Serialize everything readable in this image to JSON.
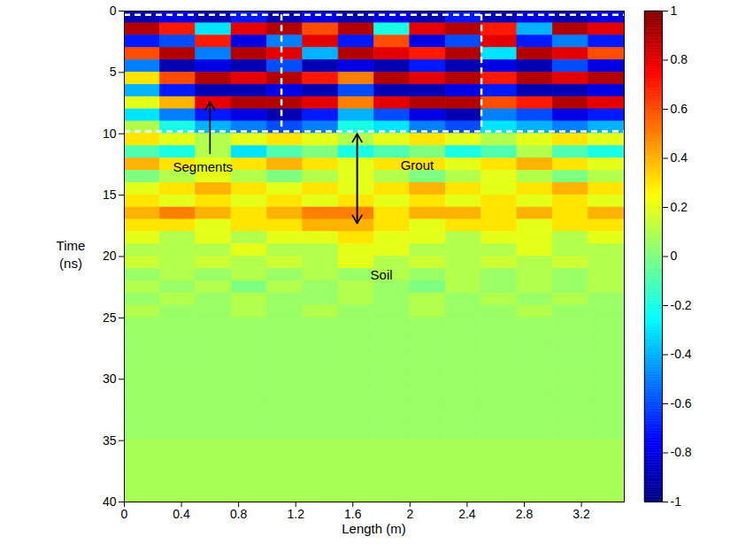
{
  "chart_data": {
    "type": "heatmap",
    "x_label": "Length (m)",
    "y_label": "Time (ns)",
    "xlim": [
      0,
      3.5
    ],
    "xticks": [
      0,
      0.4,
      0.8,
      1.2,
      1.6,
      2.0,
      2.4,
      2.8,
      3.2
    ],
    "ylim": [
      0,
      40
    ],
    "yticks": [
      0,
      5,
      10,
      15,
      20,
      25,
      30,
      35,
      40
    ],
    "color": "jet",
    "cells": {
      "x_edges": [
        0,
        0.25,
        0.5,
        0.75,
        1.0,
        1.25,
        1.5,
        1.75,
        2.0,
        2.25,
        2.5,
        2.75,
        3.0,
        3.25,
        3.5
      ],
      "time_edges": [
        0,
        1,
        2,
        3,
        4,
        5,
        6,
        7,
        8,
        9,
        10,
        11,
        12,
        13,
        14,
        15,
        16,
        17,
        18,
        19,
        20,
        21,
        22,
        23,
        24,
        25,
        26,
        27,
        28,
        29,
        30,
        31,
        32,
        33,
        34,
        35,
        36,
        37,
        38,
        39,
        40
      ],
      "values": [
        [
          -0.9,
          -0.8,
          -0.9,
          -0.7,
          -0.9,
          -0.8,
          -0.9,
          -0.8,
          -0.9,
          -0.7,
          -0.9,
          -0.8,
          -0.9,
          -0.8
        ],
        [
          0.9,
          0.7,
          -0.3,
          0.8,
          0.9,
          0.6,
          0.9,
          -0.2,
          0.8,
          0.9,
          0.7,
          -0.4,
          0.9,
          0.8
        ],
        [
          -0.7,
          -0.6,
          0.7,
          -0.8,
          -0.5,
          0.8,
          -0.7,
          0.6,
          -0.8,
          -0.6,
          0.8,
          -0.7,
          -0.5,
          -0.7
        ],
        [
          0.6,
          0.9,
          -0.5,
          0.9,
          0.8,
          -0.4,
          0.9,
          0.8,
          0.7,
          0.9,
          -0.3,
          0.9,
          0.8,
          0.6
        ],
        [
          -0.5,
          -0.9,
          -0.8,
          -0.9,
          -0.6,
          -0.9,
          -0.8,
          -0.9,
          -0.7,
          -0.9,
          -0.8,
          -0.9,
          -0.6,
          -0.8
        ],
        [
          0.3,
          0.6,
          0.9,
          0.8,
          0.9,
          0.7,
          0.5,
          0.9,
          0.8,
          0.9,
          0.7,
          0.9,
          0.8,
          0.9
        ],
        [
          -0.4,
          -0.7,
          -0.9,
          -0.9,
          -0.8,
          -0.9,
          -0.6,
          -0.9,
          -0.9,
          -0.8,
          -0.7,
          -0.9,
          -0.9,
          -0.8
        ],
        [
          0.2,
          0.4,
          0.8,
          0.9,
          0.9,
          0.8,
          0.5,
          0.8,
          0.9,
          0.9,
          0.6,
          0.7,
          0.9,
          0.8
        ],
        [
          -0.3,
          -0.5,
          -0.7,
          -0.8,
          -0.9,
          -0.7,
          -0.4,
          -0.6,
          -0.8,
          -0.9,
          -0.5,
          -0.6,
          -0.8,
          -0.7
        ],
        [
          0.1,
          -0.2,
          -0.4,
          -0.5,
          -0.6,
          -0.5,
          -0.2,
          -0.3,
          -0.5,
          -0.6,
          -0.3,
          -0.4,
          -0.5,
          -0.4
        ],
        [
          0.3,
          0.2,
          0.1,
          0.2,
          0.3,
          0.2,
          0.1,
          0.2,
          0.3,
          0.2,
          0.1,
          0.2,
          0.3,
          0.2
        ],
        [
          -0.1,
          -0.2,
          0.1,
          -0.3,
          -0.1,
          0.0,
          -0.2,
          -0.1,
          0.0,
          -0.2,
          -0.1,
          0.1,
          -0.1,
          -0.2
        ],
        [
          0.4,
          0.3,
          0.2,
          0.3,
          0.4,
          0.3,
          0.2,
          0.3,
          0.3,
          0.2,
          0.3,
          0.4,
          0.3,
          0.2
        ],
        [
          0.0,
          0.1,
          0.2,
          0.1,
          0.0,
          0.1,
          0.2,
          0.1,
          0.0,
          0.1,
          0.2,
          0.1,
          0.0,
          0.1
        ],
        [
          0.2,
          0.3,
          0.4,
          0.3,
          0.2,
          0.3,
          0.2,
          0.3,
          0.4,
          0.3,
          0.2,
          0.3,
          0.4,
          0.3
        ],
        [
          0.3,
          0.2,
          0.3,
          0.2,
          0.3,
          0.2,
          0.3,
          0.2,
          0.3,
          0.2,
          0.3,
          0.2,
          0.3,
          0.2
        ],
        [
          0.4,
          0.5,
          0.4,
          0.3,
          0.4,
          0.5,
          0.5,
          0.3,
          0.4,
          0.4,
          0.3,
          0.4,
          0.3,
          0.4
        ],
        [
          0.3,
          0.3,
          0.2,
          0.3,
          0.3,
          0.4,
          0.4,
          0.3,
          0.2,
          0.3,
          0.3,
          0.2,
          0.3,
          0.3
        ],
        [
          0.2,
          0.1,
          0.2,
          0.1,
          0.2,
          0.2,
          0.3,
          0.2,
          0.2,
          0.1,
          0.2,
          0.2,
          0.1,
          0.2
        ],
        [
          0.1,
          0.1,
          0.1,
          0.2,
          0.1,
          0.1,
          0.2,
          0.2,
          0.1,
          0.1,
          0.1,
          0.2,
          0.1,
          0.1
        ],
        [
          0.15,
          0.1,
          0.15,
          0.1,
          0.15,
          0.1,
          0.2,
          0.1,
          0.15,
          0.1,
          0.15,
          0.1,
          0.15,
          0.1
        ],
        [
          0.05,
          0.1,
          0.05,
          0.1,
          0.05,
          0.1,
          0.05,
          0.1,
          0.05,
          0.1,
          0.05,
          0.1,
          0.05,
          0.1
        ],
        [
          0.1,
          0.05,
          0.1,
          0.0,
          0.1,
          0.05,
          0.1,
          0.05,
          0.0,
          0.1,
          0.05,
          0.1,
          0.05,
          0.1
        ],
        [
          0.05,
          0.1,
          0.05,
          0.1,
          0.05,
          0.05,
          0.1,
          0.05,
          0.1,
          0.05,
          0.1,
          0.05,
          0.1,
          0.05
        ],
        [
          0.1,
          0.05,
          0.05,
          0.1,
          0.05,
          0.1,
          0.05,
          0.05,
          0.1,
          0.05,
          0.05,
          0.1,
          0.05,
          0.05
        ],
        [
          0.05,
          0.05,
          0.05,
          0.05,
          0.05,
          0.05,
          0.05,
          0.05,
          0.05,
          0.05,
          0.05,
          0.05,
          0.05,
          0.05
        ],
        [
          0.05,
          0.05,
          0.05,
          0.05,
          0.05,
          0.05,
          0.05,
          0.05,
          0.05,
          0.05,
          0.05,
          0.05,
          0.05,
          0.05
        ],
        [
          0.05,
          0.05,
          0.05,
          0.05,
          0.05,
          0.05,
          0.05,
          0.05,
          0.05,
          0.05,
          0.05,
          0.05,
          0.05,
          0.05
        ],
        [
          0.05,
          0.05,
          0.05,
          0.05,
          0.05,
          0.05,
          0.05,
          0.05,
          0.05,
          0.05,
          0.05,
          0.05,
          0.05,
          0.05
        ],
        [
          0.05,
          0.05,
          0.05,
          0.05,
          0.05,
          0.05,
          0.05,
          0.05,
          0.05,
          0.05,
          0.05,
          0.05,
          0.05,
          0.05
        ],
        [
          0.05,
          0.05,
          0.05,
          0.05,
          0.05,
          0.05,
          0.05,
          0.05,
          0.05,
          0.05,
          0.05,
          0.05,
          0.05,
          0.05
        ],
        [
          0.05,
          0.05,
          0.05,
          0.05,
          0.05,
          0.05,
          0.05,
          0.05,
          0.05,
          0.05,
          0.05,
          0.05,
          0.05,
          0.05
        ],
        [
          0.05,
          0.05,
          0.05,
          0.05,
          0.05,
          0.05,
          0.05,
          0.05,
          0.05,
          0.05,
          0.05,
          0.05,
          0.05,
          0.05
        ],
        [
          0.05,
          0.05,
          0.05,
          0.05,
          0.05,
          0.05,
          0.05,
          0.05,
          0.05,
          0.05,
          0.05,
          0.05,
          0.05,
          0.05
        ],
        [
          0.05,
          0.05,
          0.05,
          0.05,
          0.05,
          0.05,
          0.05,
          0.05,
          0.05,
          0.05,
          0.05,
          0.05,
          0.05,
          0.05
        ],
        [
          0.08,
          0.08,
          0.08,
          0.08,
          0.08,
          0.08,
          0.08,
          0.08,
          0.08,
          0.08,
          0.08,
          0.08,
          0.08,
          0.08
        ],
        [
          0.08,
          0.08,
          0.08,
          0.08,
          0.08,
          0.08,
          0.08,
          0.08,
          0.08,
          0.08,
          0.08,
          0.08,
          0.08,
          0.08
        ],
        [
          0.08,
          0.08,
          0.08,
          0.08,
          0.08,
          0.08,
          0.08,
          0.08,
          0.08,
          0.08,
          0.08,
          0.08,
          0.08,
          0.08
        ],
        [
          0.08,
          0.08,
          0.08,
          0.08,
          0.08,
          0.08,
          0.08,
          0.08,
          0.08,
          0.08,
          0.08,
          0.08,
          0.08,
          0.08
        ],
        [
          0.08,
          0.08,
          0.08,
          0.08,
          0.08,
          0.08,
          0.08,
          0.08,
          0.08,
          0.08,
          0.08,
          0.08,
          0.08,
          0.08
        ]
      ]
    },
    "colorbar": {
      "range": [
        -1,
        1
      ],
      "ticks": [
        1,
        0.8,
        0.6,
        0.4,
        0.2,
        0,
        -0.2,
        -0.4,
        -0.6,
        -0.8,
        -1
      ]
    },
    "segment_lines": {
      "x": [
        1.1,
        2.5
      ],
      "time": [
        0.3,
        9.8
      ]
    },
    "annotations": [
      {
        "text": "Segments",
        "x": 0.55,
        "y": 12.7
      },
      {
        "text": "Grout",
        "x": 2.05,
        "y": 12.6
      },
      {
        "text": "Soil",
        "x": 1.8,
        "y": 21.5
      }
    ],
    "arrows": [
      {
        "x": 0.6,
        "y1": 11.6,
        "y2": 7.4,
        "both_ends": false
      },
      {
        "x": 1.63,
        "y1": 10.0,
        "y2": 17.3,
        "both_ends": true
      }
    ]
  }
}
